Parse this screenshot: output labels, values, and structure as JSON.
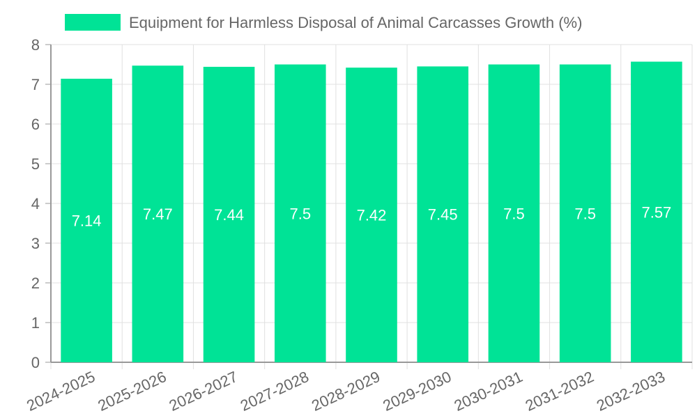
{
  "chart_data": {
    "type": "bar",
    "categories": [
      "2024-2025",
      "2025-2026",
      "2026-2027",
      "2027-2028",
      "2028-2029",
      "2029-2030",
      "2030-2031",
      "2031-2032",
      "2032-2033"
    ],
    "series": [
      {
        "name": "Equipment for Harmless Disposal of Animal Carcasses Growth (%)",
        "values": [
          7.14,
          7.47,
          7.44,
          7.5,
          7.42,
          7.45,
          7.5,
          7.5,
          7.57
        ],
        "labels": [
          "7.14",
          "7.47",
          "7.44",
          "7.5",
          "7.42",
          "7.45",
          "7.5",
          "7.5",
          "7.57"
        ]
      }
    ],
    "yticks": [
      "0",
      "1",
      "2",
      "3",
      "4",
      "5",
      "6",
      "7",
      "8"
    ],
    "ylim": [
      0,
      8
    ],
    "grid": true,
    "legend_position": "top",
    "colors": {
      "bar": "#00e396",
      "grid": "#e0e0e0",
      "axis": "#999999",
      "text": "#666666",
      "data_label": "#ffffff"
    }
  }
}
